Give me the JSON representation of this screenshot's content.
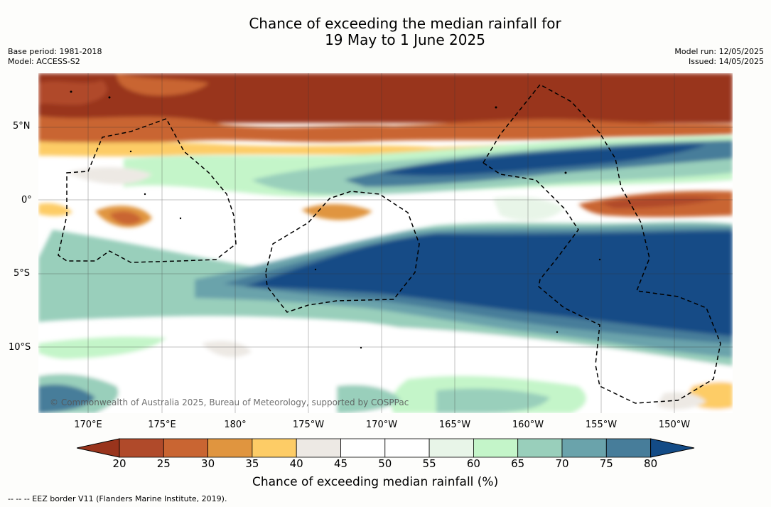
{
  "title": {
    "line1": "Chance of exceeding the median rainfall for",
    "line2": "19 May to 1 June 2025"
  },
  "meta": {
    "base_period": "Base period: 1981-2018",
    "model": "Model: ACCESS-S2",
    "model_run": "Model run: 12/05/2025",
    "issued": "Issued: 14/05/2025"
  },
  "map": {
    "lat_labels": [
      "5°N",
      "0°",
      "5°S",
      "10°S"
    ],
    "lon_labels": [
      "170°E",
      "175°E",
      "180°",
      "175°W",
      "170°W",
      "165°W",
      "160°W",
      "155°W",
      "150°W"
    ],
    "copyright": "© Commonwealth of Australia 2025, Bureau of Meteorology, supported by COSPPac"
  },
  "colorbar": {
    "ticks": [
      "20",
      "25",
      "30",
      "35",
      "40",
      "45",
      "50",
      "55",
      "60",
      "65",
      "70",
      "75",
      "80"
    ],
    "label": "Chance of exceeding median rainfall (%)",
    "colors": [
      "#99341c",
      "#b04a2a",
      "#c96532",
      "#e0953f",
      "#fdcc66",
      "#ede9e4",
      "#ffffff",
      "#ffffff",
      "#e8f5e8",
      "#c4f5c9",
      "#99cfbb",
      "#6aa3ab",
      "#477d9a",
      "#134b86"
    ]
  },
  "footnote": "--  --  -- EEZ border V11 (Flanders Marine Institute, 2019)."
}
